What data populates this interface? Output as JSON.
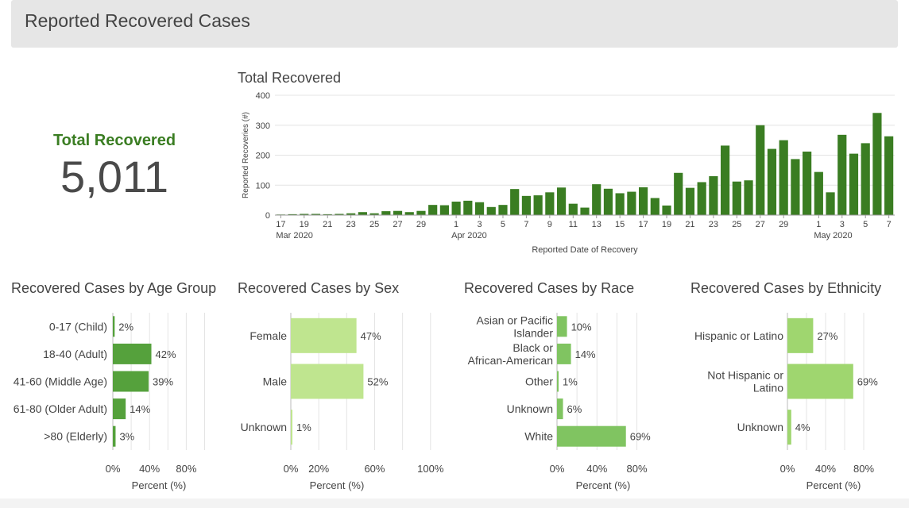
{
  "header": {
    "title": "Reported Recovered Cases"
  },
  "summary": {
    "label": "Total Recovered",
    "value": "5,011"
  },
  "colors": {
    "dark_green": "#3a7d22",
    "medium_green": "#55a13c",
    "light_green": "#bfe58f",
    "mid_light_green": "#80c461"
  },
  "chart_data": [
    {
      "type": "bar",
      "title": "Total Recovered",
      "xlabel": "Reported Date of Recovery",
      "ylabel": "Reported Recoveries (#)",
      "ylim": [
        0,
        400
      ],
      "yticks": [
        0,
        100,
        200,
        300,
        400
      ],
      "x": [
        "Mar 17",
        "Mar 18",
        "Mar 19",
        "Mar 20",
        "Mar 21",
        "Mar 22",
        "Mar 23",
        "Mar 24",
        "Mar 25",
        "Mar 26",
        "Mar 27",
        "Mar 28",
        "Mar 29",
        "Mar 30",
        "Mar 31",
        "Apr 1",
        "Apr 2",
        "Apr 3",
        "Apr 4",
        "Apr 5",
        "Apr 6",
        "Apr 7",
        "Apr 8",
        "Apr 9",
        "Apr 10",
        "Apr 11",
        "Apr 12",
        "Apr 13",
        "Apr 14",
        "Apr 15",
        "Apr 16",
        "Apr 17",
        "Apr 18",
        "Apr 19",
        "Apr 20",
        "Apr 21",
        "Apr 22",
        "Apr 23",
        "Apr 24",
        "Apr 25",
        "Apr 26",
        "Apr 27",
        "Apr 28",
        "Apr 29",
        "Apr 30",
        "May 1",
        "May 2",
        "May 3",
        "May 4",
        "May 5",
        "May 6",
        "May 7",
        "May 8"
      ],
      "values": [
        2,
        3,
        4,
        4,
        3,
        4,
        6,
        10,
        6,
        13,
        14,
        10,
        14,
        34,
        33,
        45,
        48,
        43,
        27,
        34,
        87,
        64,
        66,
        76,
        92,
        38,
        25,
        103,
        88,
        73,
        78,
        93,
        57,
        32,
        141,
        91,
        110,
        130,
        232,
        112,
        116,
        300,
        221,
        250,
        187,
        212,
        144,
        76,
        268,
        205,
        240,
        341,
        263
      ],
      "xtick_labels": [
        "17",
        "19",
        "21",
        "23",
        "25",
        "27",
        "29",
        "1",
        "3",
        "5",
        "7",
        "9",
        "11",
        "13",
        "15",
        "17",
        "19",
        "21",
        "23",
        "25",
        "27",
        "29",
        "1",
        "3",
        "5",
        "7"
      ],
      "month_labels": [
        "Mar 2020",
        "Apr 2020",
        "May 2020"
      ],
      "grid": true,
      "color": "#3a7d22"
    },
    {
      "type": "bar",
      "orientation": "horizontal",
      "title": "Recovered Cases by Age Group",
      "xlabel": "Percent (%)",
      "categories": [
        "0-17 (Child)",
        "18-40 (Adult)",
        "41-60 (Middle Age)",
        "61-80 (Older Adult)",
        ">80 (Elderly)"
      ],
      "values": [
        2,
        42,
        39,
        14,
        3
      ],
      "labels": [
        "2%",
        "42%",
        "39%",
        "14%",
        "3%"
      ],
      "xticks": [
        "0%",
        "40%",
        "80%"
      ],
      "xlim": [
        0,
        100
      ],
      "color": "#55a13c"
    },
    {
      "type": "bar",
      "orientation": "horizontal",
      "title": "Recovered Cases by Sex",
      "xlabel": "Percent (%)",
      "categories": [
        "Female",
        "Male",
        "Unknown"
      ],
      "values": [
        47,
        52,
        1
      ],
      "labels": [
        "47%",
        "52%",
        "1%"
      ],
      "xticks": [
        "0%",
        "20%",
        "60%",
        "100%"
      ],
      "xlim": [
        0,
        100
      ],
      "color": "#bfe58f"
    },
    {
      "type": "bar",
      "orientation": "horizontal",
      "title": "Recovered Cases by Race",
      "xlabel": "Percent (%)",
      "categories": [
        [
          "Asian or Pacific",
          "Islander"
        ],
        [
          "Black or",
          "African-American"
        ],
        [
          "Other"
        ],
        [
          "Unknown"
        ],
        [
          "White"
        ]
      ],
      "values": [
        10,
        14,
        1,
        6,
        69
      ],
      "labels": [
        "10%",
        "14%",
        "1%",
        "6%",
        "69%"
      ],
      "xticks": [
        "0%",
        "40%",
        "80%"
      ],
      "xlim": [
        0,
        100
      ],
      "color": "#80c461"
    },
    {
      "type": "bar",
      "orientation": "horizontal",
      "title": "Recovered Cases by Ethnicity",
      "xlabel": "Percent (%)",
      "categories": [
        [
          "Hispanic or Latino"
        ],
        [
          "Not Hispanic or",
          "Latino"
        ],
        [
          "Unknown"
        ]
      ],
      "values": [
        27,
        69,
        4
      ],
      "labels": [
        "27%",
        "69%",
        "4%"
      ],
      "xticks": [
        "0%",
        "40%",
        "80%"
      ],
      "xlim": [
        0,
        100
      ],
      "color": "#9fd66f"
    }
  ]
}
